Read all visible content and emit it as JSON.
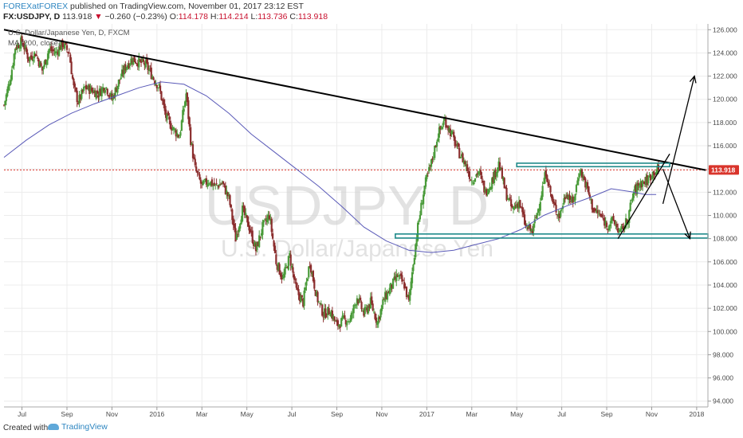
{
  "header": {
    "author": "FOREXatFOREX",
    "published": "published on TradingView.com, November 01, 2017 23:12 EST",
    "symbol": "FX:USDJPY, D",
    "price": "113.918",
    "change_arrow": "▼",
    "change": "−0.260 (−0.23%)",
    "o_label": "O:",
    "o_val": "114.178",
    "h_label": "H:",
    "h_val": "114.214",
    "l_label": "L:",
    "l_val": "113.736",
    "c_label": "C:",
    "c_val": "113.918"
  },
  "legend": {
    "series": "U.S. Dollar/Japanese Yen, D, FXCM",
    "ma": "MA (200, close)"
  },
  "watermark": {
    "symbol": "USDJPY, D",
    "name": "U.S. Dollar/Japanese Yen"
  },
  "footer": {
    "created": "Created with",
    "brand": "TradingView"
  },
  "colors": {
    "up": "#4a9b3a",
    "down": "#8b2e2e",
    "ma": "#5a5ab8",
    "trendline": "#000000",
    "box": "#1f8a8a",
    "price_line": "#d9342b",
    "price_tag": "#d9342b"
  },
  "chart_data": {
    "type": "candlestick",
    "x_ticks": [
      {
        "label": "Jul",
        "t": 0.8
      },
      {
        "label": "Sep",
        "t": 2.8
      },
      {
        "label": "Nov",
        "t": 4.8
      },
      {
        "label": "2016",
        "t": 6.8
      },
      {
        "label": "Mar",
        "t": 8.8
      },
      {
        "label": "May",
        "t": 10.8
      },
      {
        "label": "Jul",
        "t": 12.8
      },
      {
        "label": "Sep",
        "t": 14.8
      },
      {
        "label": "Nov",
        "t": 16.8
      },
      {
        "label": "2017",
        "t": 18.8
      },
      {
        "label": "Mar",
        "t": 20.8
      },
      {
        "label": "May",
        "t": 22.8
      },
      {
        "label": "Jul",
        "t": 24.8
      },
      {
        "label": "Sep",
        "t": 26.8
      },
      {
        "label": "Nov",
        "t": 28.8
      },
      {
        "label": "2018",
        "t": 30.8
      }
    ],
    "y_ticks": [
      "126.000",
      "124.000",
      "122.000",
      "120.000",
      "118.000",
      "116.000",
      "114.000",
      "112.000",
      "110.000",
      "108.000",
      "106.000",
      "104.000",
      "102.000",
      "100.000",
      "98.000",
      "96.000",
      "94.000"
    ],
    "ylim": [
      93.5,
      126.5
    ],
    "xlim": [
      0,
      31.3
    ],
    "last_price": 113.918,
    "last_price_label": "113.918",
    "close_path": [
      [
        0.0,
        119.5
      ],
      [
        0.3,
        122.0
      ],
      [
        0.5,
        124.5
      ],
      [
        0.8,
        125.0
      ],
      [
        1.1,
        123.5
      ],
      [
        1.4,
        124.0
      ],
      [
        1.7,
        122.5
      ],
      [
        2.0,
        124.3
      ],
      [
        2.3,
        124.0
      ],
      [
        2.6,
        124.8
      ],
      [
        2.9,
        124.0
      ],
      [
        3.1,
        121.0
      ],
      [
        3.3,
        119.8
      ],
      [
        3.6,
        121.0
      ],
      [
        3.9,
        120.8
      ],
      [
        4.2,
        120.5
      ],
      [
        4.5,
        121.2
      ],
      [
        4.8,
        120.0
      ],
      [
        5.1,
        121.5
      ],
      [
        5.4,
        122.8
      ],
      [
        5.7,
        123.5
      ],
      [
        6.0,
        123.2
      ],
      [
        6.3,
        123.0
      ],
      [
        6.6,
        122.0
      ],
      [
        6.9,
        121.0
      ],
      [
        7.2,
        118.5
      ],
      [
        7.5,
        117.5
      ],
      [
        7.8,
        116.8
      ],
      [
        8.1,
        120.5
      ],
      [
        8.3,
        116.5
      ],
      [
        8.5,
        114.0
      ],
      [
        8.8,
        112.5
      ],
      [
        9.1,
        113.0
      ],
      [
        9.4,
        112.5
      ],
      [
        9.7,
        112.8
      ],
      [
        10.0,
        111.5
      ],
      [
        10.3,
        108.0
      ],
      [
        10.6,
        110.5
      ],
      [
        10.9,
        109.0
      ],
      [
        11.2,
        107.0
      ],
      [
        11.5,
        109.0
      ],
      [
        11.8,
        110.0
      ],
      [
        12.1,
        106.0
      ],
      [
        12.4,
        104.5
      ],
      [
        12.7,
        106.5
      ],
      [
        13.0,
        103.5
      ],
      [
        13.3,
        102.5
      ],
      [
        13.6,
        106.0
      ],
      [
        13.9,
        103.0
      ],
      [
        14.2,
        101.5
      ],
      [
        14.5,
        101.8
      ],
      [
        14.8,
        100.5
      ],
      [
        15.1,
        101.0
      ],
      [
        15.4,
        101.0
      ],
      [
        15.7,
        103.0
      ],
      [
        16.0,
        101.5
      ],
      [
        16.3,
        102.5
      ],
      [
        16.6,
        100.8
      ],
      [
        16.9,
        102.8
      ],
      [
        17.2,
        103.8
      ],
      [
        17.5,
        104.8
      ],
      [
        17.8,
        104.0
      ],
      [
        18.0,
        102.5
      ],
      [
        18.2,
        106.0
      ],
      [
        18.4,
        109.0
      ],
      [
        18.7,
        112.5
      ],
      [
        19.0,
        114.5
      ],
      [
        19.3,
        117.0
      ],
      [
        19.6,
        118.2
      ],
      [
        19.9,
        117.0
      ],
      [
        20.2,
        115.5
      ],
      [
        20.5,
        114.5
      ],
      [
        20.8,
        113.0
      ],
      [
        21.1,
        113.8
      ],
      [
        21.4,
        112.0
      ],
      [
        21.7,
        113.0
      ],
      [
        22.0,
        114.5
      ],
      [
        22.3,
        112.0
      ],
      [
        22.6,
        110.5
      ],
      [
        22.9,
        111.2
      ],
      [
        23.2,
        109.0
      ],
      [
        23.5,
        108.6
      ],
      [
        23.8,
        111.0
      ],
      [
        24.1,
        113.8
      ],
      [
        24.4,
        111.0
      ],
      [
        24.7,
        110.0
      ],
      [
        25.0,
        112.0
      ],
      [
        25.3,
        111.0
      ],
      [
        25.6,
        114.0
      ],
      [
        25.9,
        112.5
      ],
      [
        26.2,
        110.5
      ],
      [
        26.5,
        110.0
      ],
      [
        26.8,
        109.2
      ],
      [
        27.1,
        109.5
      ],
      [
        27.4,
        108.5
      ],
      [
        27.7,
        109.5
      ],
      [
        28.0,
        112.0
      ],
      [
        28.3,
        112.8
      ],
      [
        28.6,
        113.0
      ],
      [
        28.9,
        113.8
      ],
      [
        29.1,
        113.9
      ]
    ],
    "ma_path": [
      [
        0.0,
        115.0
      ],
      [
        1.0,
        116.5
      ],
      [
        2.0,
        117.8
      ],
      [
        3.0,
        118.8
      ],
      [
        4.0,
        119.6
      ],
      [
        5.0,
        120.3
      ],
      [
        6.0,
        121.0
      ],
      [
        7.0,
        121.5
      ],
      [
        8.0,
        121.3
      ],
      [
        9.0,
        120.3
      ],
      [
        10.0,
        118.8
      ],
      [
        11.0,
        117.0
      ],
      [
        12.0,
        115.5
      ],
      [
        13.0,
        114.0
      ],
      [
        14.0,
        112.5
      ],
      [
        15.0,
        110.8
      ],
      [
        16.0,
        109.0
      ],
      [
        17.0,
        107.8
      ],
      [
        18.0,
        107.0
      ],
      [
        19.0,
        106.8
      ],
      [
        20.0,
        107.0
      ],
      [
        21.0,
        107.5
      ],
      [
        22.0,
        108.0
      ],
      [
        23.0,
        108.8
      ],
      [
        24.0,
        110.0
      ],
      [
        25.0,
        110.8
      ],
      [
        26.0,
        111.5
      ],
      [
        27.0,
        112.3
      ],
      [
        28.0,
        112.0
      ],
      [
        28.5,
        111.8
      ],
      [
        29.0,
        111.8
      ]
    ],
    "drawings": {
      "trendline": [
        [
          0.0,
          126.0
        ],
        [
          31.2,
          113.9
        ]
      ],
      "resistance": {
        "x": [
          22.8,
          29.6
        ],
        "y": [
          114.2,
          114.5
        ]
      },
      "support": {
        "x": [
          17.4,
          31.3
        ],
        "y": [
          108.05,
          108.4
        ]
      },
      "arrow_up": [
        [
          29.3,
          111.0
        ],
        [
          30.7,
          122.0
        ]
      ],
      "arrow_down": [
        [
          29.3,
          114.0
        ],
        [
          30.5,
          108.0
        ]
      ],
      "wedge": [
        [
          27.3,
          108.0
        ],
        [
          29.6,
          115.3
        ]
      ]
    }
  }
}
